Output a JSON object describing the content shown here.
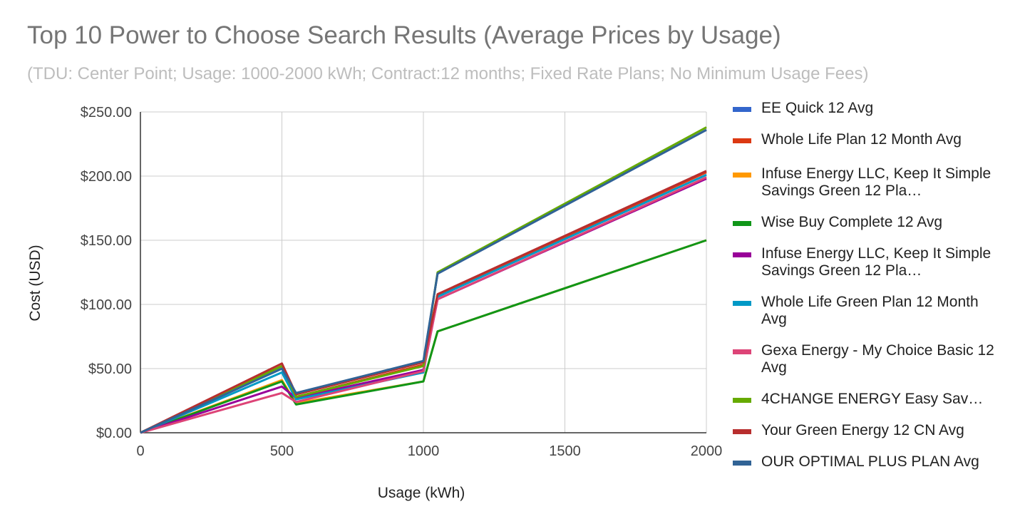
{
  "chart_data": {
    "type": "line",
    "title": "Top 10 Power to Choose Search Results (Average Prices by Usage)",
    "subtitle": "(TDU: Center Point; Usage: 1000-2000 kWh; Contract:12 months; Fixed Rate Plans; No Minimum Usage Fees)",
    "xlabel": "Usage (kWh)",
    "ylabel": "Cost (USD)",
    "xlim": [
      0,
      2000
    ],
    "ylim": [
      0,
      250
    ],
    "x_ticks": [
      0,
      500,
      1000,
      1500,
      2000
    ],
    "x_tick_labels": [
      "0",
      "500",
      "1000",
      "1500",
      "2000"
    ],
    "y_ticks": [
      0,
      50,
      100,
      150,
      200,
      250
    ],
    "y_tick_labels": [
      "$0.00",
      "$50.00",
      "$100.00",
      "$150.00",
      "$200.00",
      "$250.00"
    ],
    "grid": true,
    "legend_position": "right",
    "x": [
      0,
      500,
      550,
      1000,
      1050,
      2000
    ],
    "series": [
      {
        "name": "EE Quick 12 Avg",
        "color": "#3366cc",
        "values": [
          0,
          50,
          30,
          55,
          124,
          236
        ]
      },
      {
        "name": "Whole Life Plan 12 Month Avg",
        "color": "#dc3912",
        "values": [
          0,
          52,
          28,
          53,
          107,
          203
        ]
      },
      {
        "name": "Infuse Energy LLC, Keep It Simple Savings Green 12 Pla…",
        "color": "#ff9900",
        "values": [
          0,
          41,
          23,
          40,
          79,
          150
        ]
      },
      {
        "name": "Wise Buy Complete 12 Avg",
        "color": "#109618",
        "values": [
          0,
          40,
          22,
          40,
          79,
          150
        ]
      },
      {
        "name": "Infuse Energy LLC, Keep It Simple Savings Green 12 Pla…",
        "color": "#990099",
        "values": [
          0,
          36,
          27,
          49,
          104,
          198
        ]
      },
      {
        "name": "Whole Life Green Plan 12 Month Avg",
        "color": "#0099c6",
        "values": [
          0,
          47,
          26,
          47,
          106,
          201
        ]
      },
      {
        "name": "Gexa Energy - My Choice Basic 12 Avg",
        "color": "#dd4477",
        "values": [
          0,
          31,
          24,
          48,
          104,
          199
        ]
      },
      {
        "name": "4CHANGE ENERGY Easy Sav…",
        "color": "#66aa00",
        "values": [
          0,
          52,
          28,
          52,
          125,
          238
        ]
      },
      {
        "name": "Your Green Energy 12 CN Avg",
        "color": "#b82e2e",
        "values": [
          0,
          54,
          30,
          55,
          108,
          204
        ]
      },
      {
        "name": "OUR OPTIMAL PLUS PLAN Avg",
        "color": "#316395",
        "values": [
          0,
          50,
          31,
          56,
          124,
          236
        ]
      }
    ],
    "legend_labels": [
      "EE Quick 12 Avg",
      "Whole Life Plan 12 Month Avg",
      "Infuse Energy LLC, Keep It Simple Savings Green 12 Pla…",
      "Wise Buy Complete 12 Avg",
      "Infuse Energy LLC, Keep It Simple Savings Green 12 Pla…",
      "Whole Life Green Plan 12 Month Avg",
      "Gexa Energy - My Choice Basic 12 Avg",
      "4CHANGE ENERGY Easy Sav…",
      "Your Green Energy 12 CN Avg",
      "OUR OPTIMAL PLUS PLAN Avg"
    ]
  }
}
